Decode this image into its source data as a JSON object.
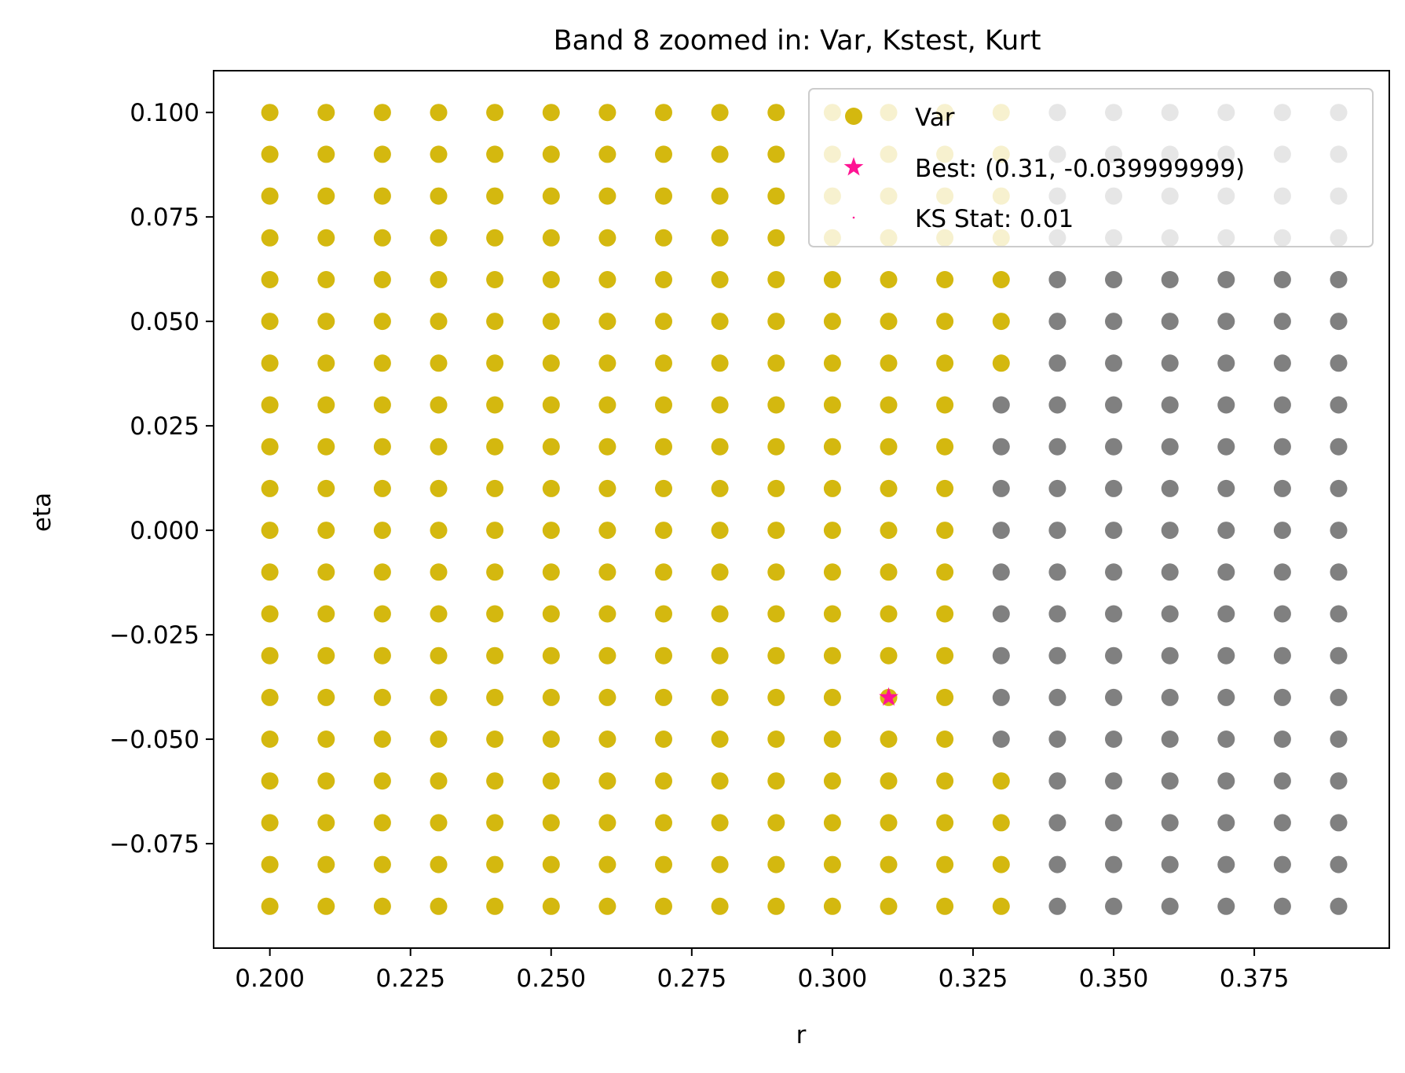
{
  "chart_data": {
    "type": "scatter",
    "title": "Band 8 zoomed in: Var, Kstest, Kurt",
    "xlabel": "r",
    "ylabel": "eta",
    "xlim": [
      0.19,
      0.399
    ],
    "ylim": [
      -0.1,
      0.11
    ],
    "x_ticks": [
      0.2,
      0.225,
      0.25,
      0.275,
      0.3,
      0.325,
      0.35,
      0.375
    ],
    "x_tick_labels": [
      "0.200",
      "0.225",
      "0.250",
      "0.275",
      "0.300",
      "0.325",
      "0.350",
      "0.375"
    ],
    "y_ticks": [
      0.1,
      0.075,
      0.05,
      0.025,
      0.0,
      -0.025,
      -0.05,
      -0.075
    ],
    "y_tick_labels": [
      "0.100",
      "0.075",
      "0.050",
      "0.025",
      "0.000",
      "−0.025",
      "−0.050",
      "−0.075"
    ],
    "grid": false,
    "legend_position": "top-right",
    "grid_points": {
      "r_start": 0.2,
      "r_step": 0.01,
      "r_count": 20,
      "eta_start": -0.09,
      "eta_step": 0.01,
      "eta_count": 20,
      "var_boundary_r": [
        0.33,
        0.33,
        0.33,
        0.33,
        0.32,
        0.32,
        0.32,
        0.32,
        0.32,
        0.32,
        0.32,
        0.32,
        0.32,
        0.33,
        0.33,
        0.33,
        0.33,
        0.33,
        0.33,
        0.33
      ]
    },
    "series": [
      {
        "name": "Var",
        "marker": "circle",
        "color": "#d4b80f",
        "description_rule": "grid points with r <= boundary"
      },
      {
        "name": "Best: (0.31, -0.039999999)",
        "marker": "star",
        "color": "#ff1493",
        "points": [
          [
            0.31,
            -0.04
          ]
        ]
      },
      {
        "name": "KS Stat: 0.01",
        "marker": "point",
        "color": "#ff1493"
      }
    ],
    "other_points_color": "#808080"
  }
}
